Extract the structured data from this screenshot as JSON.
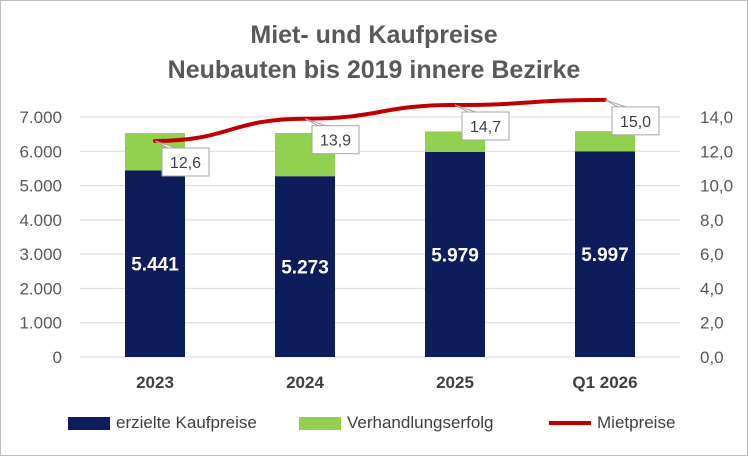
{
  "chart_data": {
    "type": "bar",
    "title_lines": [
      "Miet- und Kaufpreise",
      "Neubauten bis 2019 innere Bezirke"
    ],
    "categories": [
      "2023",
      "2024",
      "2025",
      "Q1 2026"
    ],
    "series": [
      {
        "name": "erzielte Kaufpreise",
        "type": "bar",
        "stack": "main",
        "axis": "left",
        "color": "#0d1c5a",
        "values": [
          5441,
          5273,
          5979,
          5997
        ],
        "labels": [
          "5.441",
          "5.273",
          "5.979",
          "5.997"
        ]
      },
      {
        "name": "Verhandlungserfolg",
        "type": "bar",
        "stack": "main",
        "axis": "left",
        "color": "#92d050",
        "values": [
          1090,
          1260,
          600,
          590
        ]
      },
      {
        "name": "Mietpreise",
        "type": "line",
        "axis": "right",
        "color": "#c00000",
        "values": [
          12.6,
          13.9,
          14.7,
          15.0
        ],
        "labels": [
          "12,6",
          "13,9",
          "14,7",
          "15,0"
        ]
      }
    ],
    "y_left": {
      "min": 0,
      "max": 7000,
      "ticks": [
        0,
        1000,
        2000,
        3000,
        4000,
        5000,
        6000,
        7000
      ],
      "tick_labels": [
        "0",
        "1.000",
        "2.000",
        "3.000",
        "4.000",
        "5.000",
        "6.000",
        "7.000"
      ]
    },
    "y_right": {
      "min": 0,
      "max": 14,
      "ticks": [
        0,
        2,
        4,
        6,
        8,
        10,
        12,
        14
      ],
      "tick_labels": [
        "0,0",
        "2,0",
        "4,0",
        "6,0",
        "8,0",
        "10,0",
        "12,0",
        "14,0"
      ]
    },
    "grid": true,
    "legend_position": "bottom"
  }
}
